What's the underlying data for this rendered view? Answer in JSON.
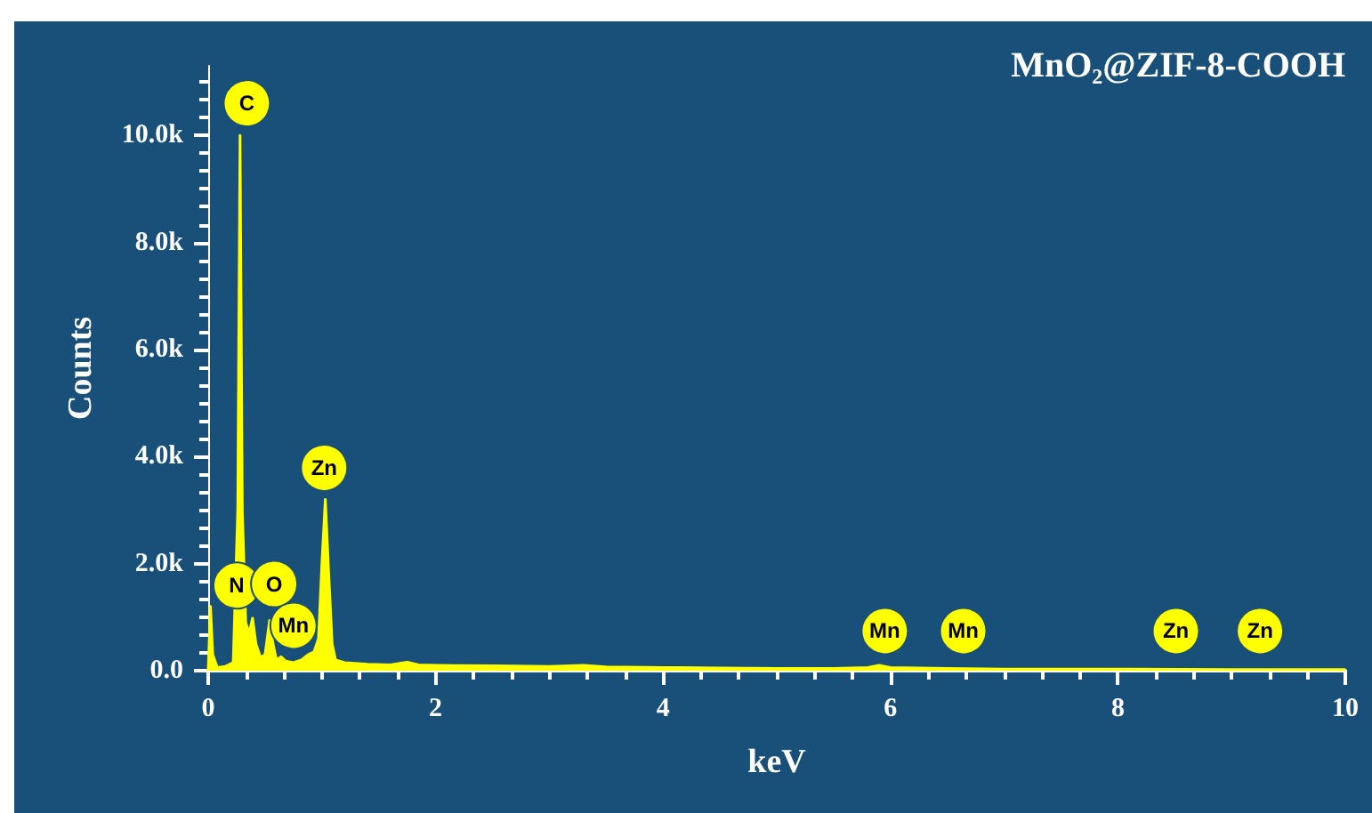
{
  "chart_data": {
    "type": "area",
    "title": "MnO₂@ZIF-8-COOH",
    "xlabel": "keV",
    "ylabel": "Counts",
    "x": [
      0,
      0.02,
      0.04,
      0.08,
      0.15,
      0.22,
      0.26,
      0.28,
      0.3,
      0.33,
      0.36,
      0.39,
      0.42,
      0.46,
      0.5,
      0.54,
      0.57,
      0.6,
      0.64,
      0.68,
      0.75,
      0.82,
      0.88,
      0.93,
      0.97,
      1.0,
      1.03,
      1.06,
      1.09,
      1.12,
      1.2,
      1.4,
      1.6,
      1.75,
      1.85,
      2.0,
      2.5,
      3.0,
      3.3,
      3.5,
      4.0,
      4.5,
      5.0,
      5.5,
      5.8,
      5.9,
      6.0,
      6.5,
      7.0,
      8.0,
      9.0,
      10
    ],
    "series": [
      {
        "color": "#ffff00",
        "values": [
          0,
          1200,
          300,
          60,
          80,
          150,
          3000,
          10000,
          3000,
          900,
          700,
          980,
          500,
          250,
          300,
          940,
          500,
          200,
          260,
          180,
          150,
          200,
          300,
          350,
          600,
          2000,
          3200,
          1800,
          500,
          200,
          150,
          120,
          110,
          160,
          110,
          100,
          90,
          80,
          100,
          70,
          60,
          50,
          40,
          40,
          60,
          100,
          60,
          40,
          30,
          30,
          20,
          20
        ]
      }
    ],
    "xlim": [
      0,
      10
    ],
    "xticks": [
      0,
      2,
      4,
      6,
      8,
      10
    ],
    "ylim": [
      0,
      11300
    ],
    "yticks": [
      {
        "value": 0,
        "label": "0.0"
      },
      {
        "value": 2000,
        "label": "2.0k"
      },
      {
        "value": 4000,
        "label": "4.0k"
      },
      {
        "value": 6000,
        "label": "6.0k"
      },
      {
        "value": 8000,
        "label": "8.0k"
      },
      {
        "value": 10000,
        "label": "10.0k"
      }
    ],
    "annotations": [
      {
        "text": "C",
        "x": 0.34,
        "y": 10600
      },
      {
        "text": "N",
        "x": 0.25,
        "y": 1590
      },
      {
        "text": "O",
        "x": 0.58,
        "y": 1620
      },
      {
        "text": "Mn",
        "x": 0.75,
        "y": 840
      },
      {
        "text": "Zn",
        "x": 1.02,
        "y": 3790
      },
      {
        "text": "Mn",
        "x": 5.95,
        "y": 740
      },
      {
        "text": "Mn",
        "x": 6.64,
        "y": 740
      },
      {
        "text": "Zn",
        "x": 8.51,
        "y": 740
      },
      {
        "text": "Zn",
        "x": 9.25,
        "y": 740
      }
    ],
    "grid": false
  }
}
